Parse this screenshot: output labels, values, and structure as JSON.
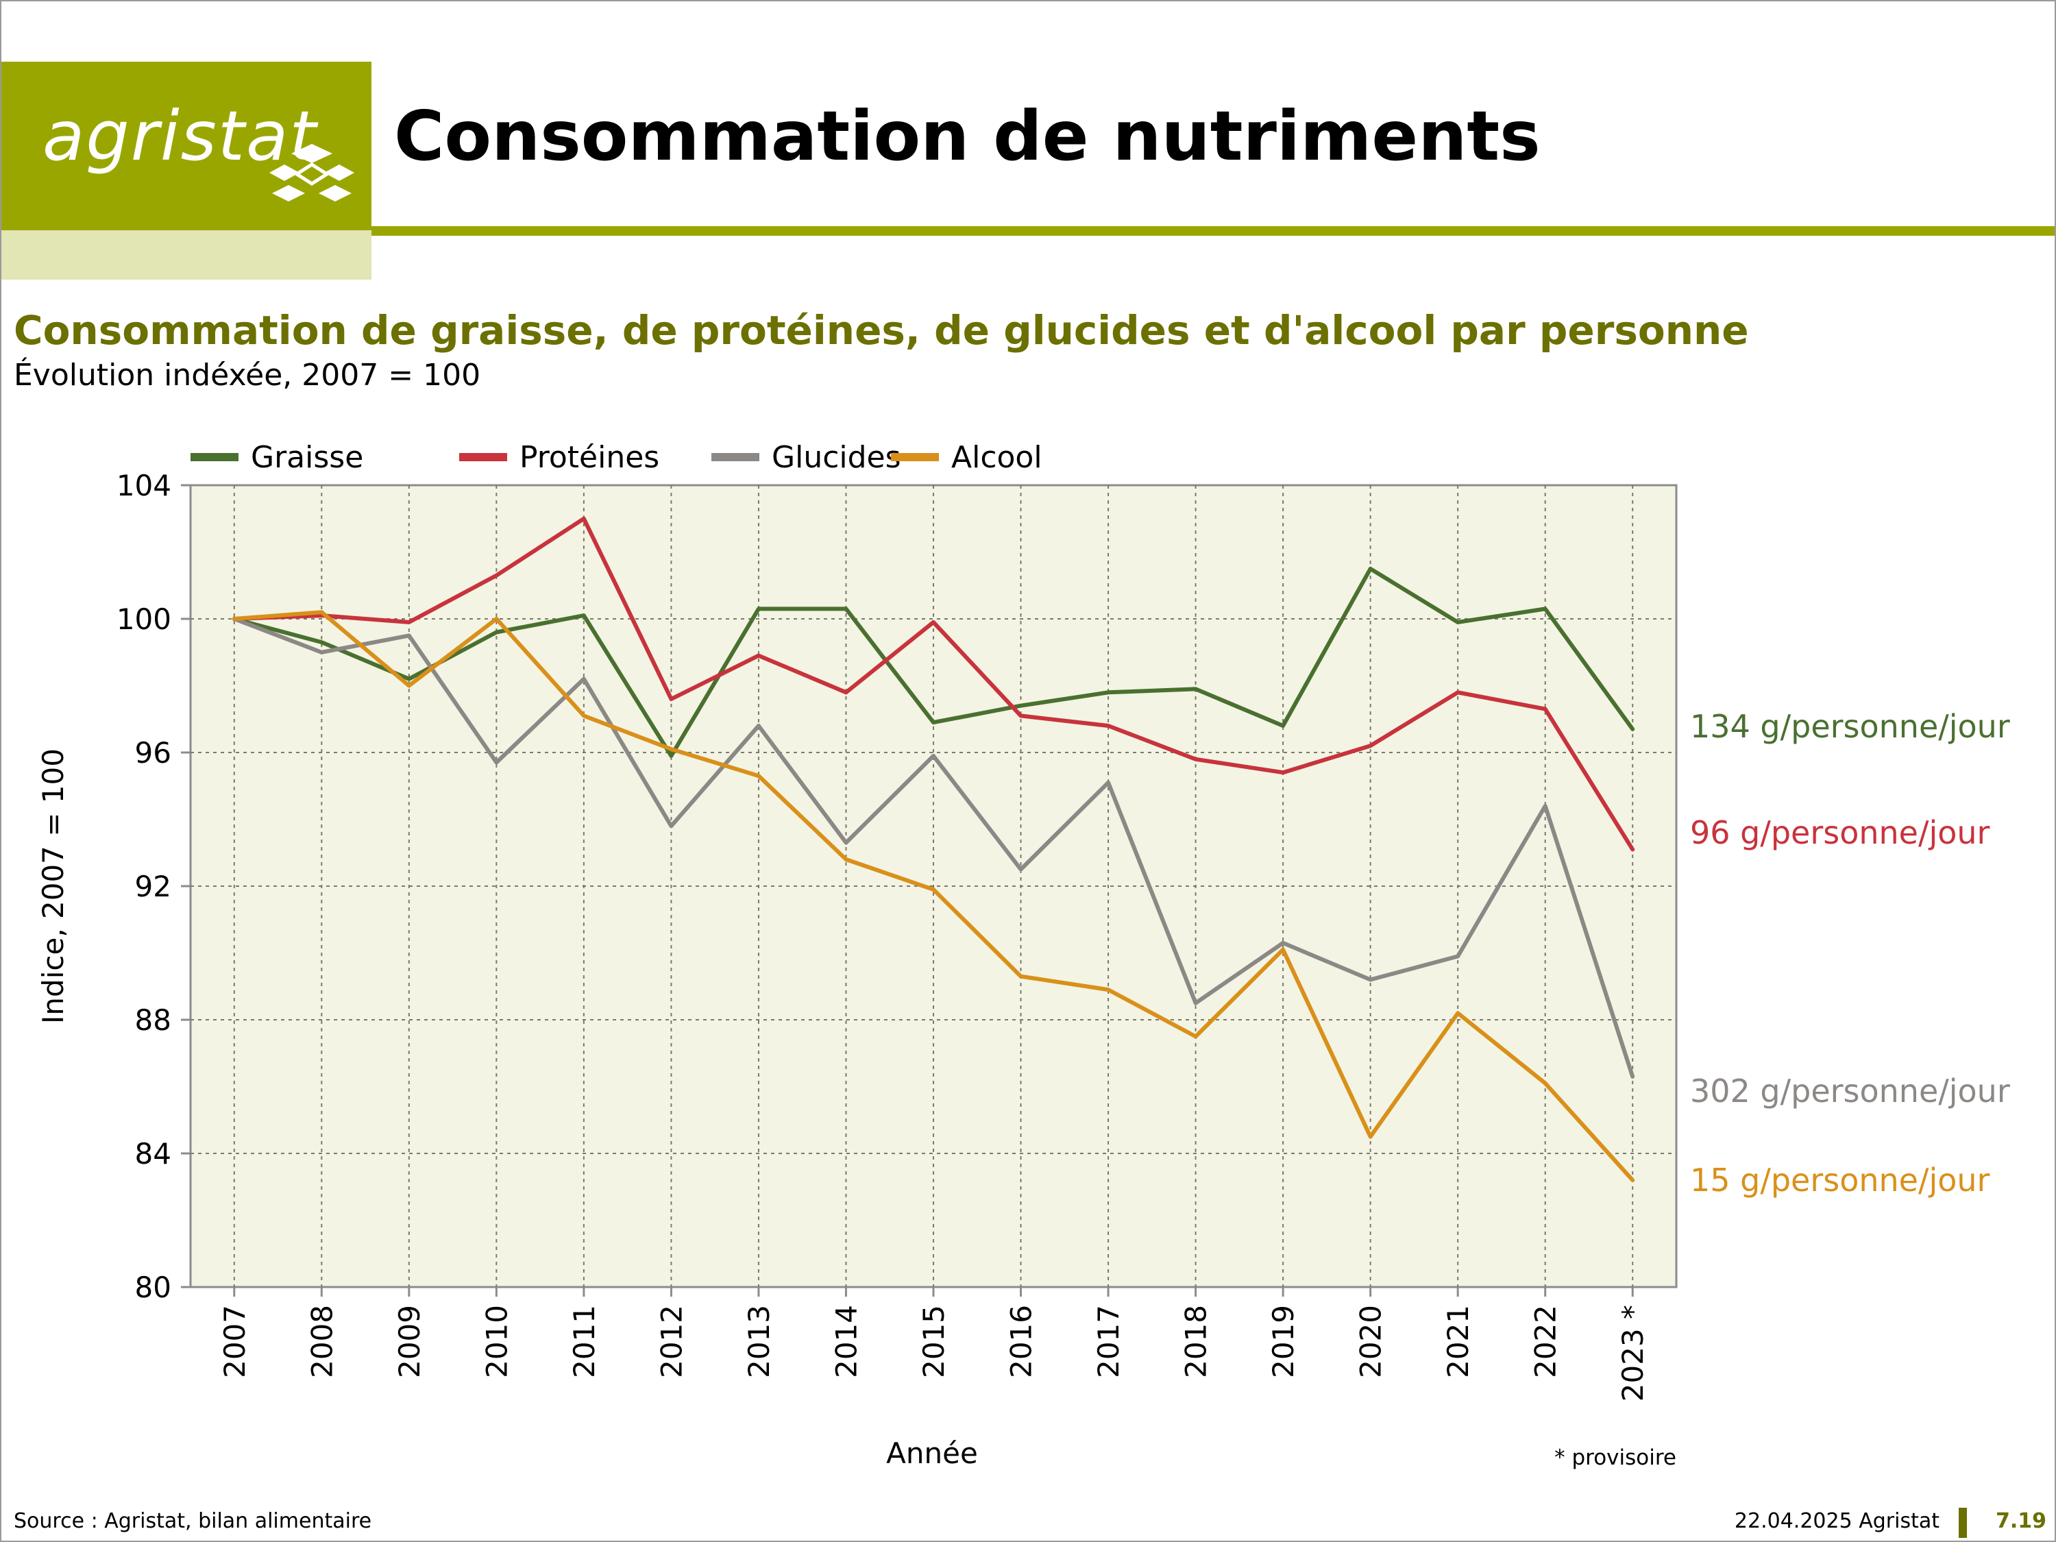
{
  "header": {
    "logo_text": "agristat",
    "title": "Consommation de nutriments"
  },
  "colors": {
    "brand": "#9aa600",
    "brand_light": "#e2e5b4",
    "brand_dark": "#6b7000",
    "plot_bg": "#f3f4e4"
  },
  "chart_data": {
    "type": "line",
    "title": "Consommation de graisse, de protéines, de glucides et d'alcool par personne",
    "subtitle": "Évolution indéxée, 2007 = 100",
    "xlabel": "Année",
    "ylabel": "Indice, 2007 = 100",
    "x": [
      "2007",
      "2008",
      "2009",
      "2010",
      "2011",
      "2012",
      "2013",
      "2014",
      "2015",
      "2016",
      "2017",
      "2018",
      "2019",
      "2020",
      "2021",
      "2022",
      "2023"
    ],
    "x_tick_labels": [
      "2007",
      "2008",
      "2009",
      "2010",
      "2011",
      "2012",
      "2013",
      "2014",
      "2015",
      "2016",
      "2017",
      "2018",
      "2019",
      "2020",
      "2021",
      "2022",
      "2023 *"
    ],
    "ylim": [
      80,
      104
    ],
    "yticks": [
      80,
      84,
      88,
      92,
      96,
      100,
      104
    ],
    "grid": true,
    "legend": "top",
    "series": [
      {
        "name": "Graisse",
        "color": "#4a7030",
        "values": [
          100,
          99.3,
          98.2,
          99.6,
          100.1,
          95.9,
          100.3,
          100.3,
          96.9,
          97.4,
          97.8,
          97.9,
          96.8,
          101.5,
          99.9,
          100.3,
          96.7
        ],
        "end_label": "134 g/personne/jour"
      },
      {
        "name": "Protéines",
        "color": "#c8333c",
        "values": [
          100,
          100.1,
          99.9,
          101.3,
          103,
          97.6,
          98.9,
          97.8,
          99.9,
          97.1,
          96.8,
          95.8,
          95.4,
          96.2,
          97.8,
          97.3,
          93.1
        ],
        "end_label": "96 g/personne/jour"
      },
      {
        "name": "Glucides",
        "color": "#8c8886",
        "values": [
          100,
          99,
          99.5,
          95.7,
          98.2,
          93.8,
          96.8,
          93.3,
          95.9,
          92.5,
          95.1,
          88.5,
          90.3,
          89.2,
          89.9,
          94.4,
          86.3
        ],
        "end_label": "302 g/personne/jour"
      },
      {
        "name": "Alcool",
        "color": "#d9901a",
        "values": [
          100,
          100.2,
          98,
          100,
          97.1,
          96.1,
          95.3,
          92.8,
          91.9,
          89.3,
          88.9,
          87.5,
          90.1,
          84.5,
          88.2,
          86.1,
          83.2
        ],
        "end_label": "15 g/personne/jour"
      }
    ],
    "note": "* provisoire"
  },
  "footer": {
    "source": "Source : Agristat, bilan alimentaire",
    "date": "22.04.2025 Agristat",
    "page": "7.19"
  }
}
